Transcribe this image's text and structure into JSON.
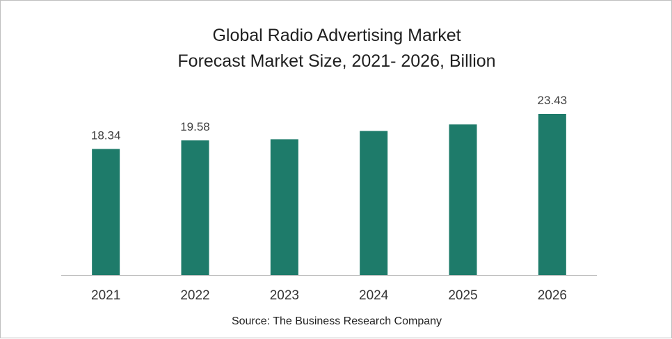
{
  "chart_data": {
    "type": "bar",
    "title": [
      "Global Radio Advertising Market",
      "Forecast Market Size, 2021- 2026, Billion"
    ],
    "categories": [
      "2021",
      "2022",
      "2023",
      "2024",
      "2025",
      "2026"
    ],
    "values": [
      18.34,
      19.58,
      19.75,
      20.95,
      21.9,
      23.43
    ],
    "data_labels": [
      "18.34",
      "19.58",
      "",
      "",
      "",
      "23.43"
    ],
    "xlabel": "",
    "ylabel": "",
    "ylim": [
      0,
      23.43
    ],
    "grid": false,
    "legend": "none",
    "bar_color": "#1e7b6a",
    "source": "Source: The Business Research Company"
  }
}
